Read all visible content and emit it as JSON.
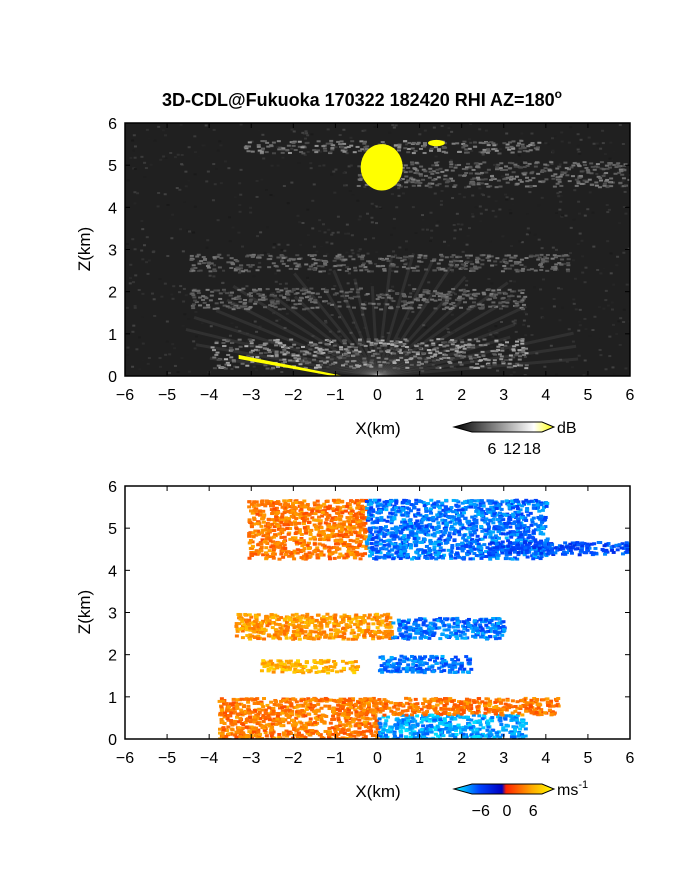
{
  "figure": {
    "title": "3D-CDL@Fukuoka 170322 182420 RHI AZ=180",
    "title_degree": "o"
  },
  "chart_data": [
    {
      "type": "heatmap",
      "name": "reflectivity",
      "xlabel": "X(km)",
      "ylabel": "Z(km)",
      "xlim": [
        -6,
        6
      ],
      "ylim": [
        0,
        6
      ],
      "xticks": [
        -6,
        -5,
        -4,
        -3,
        -2,
        -1,
        0,
        1,
        2,
        3,
        4,
        5,
        6
      ],
      "yticks": [
        0,
        1,
        2,
        3,
        4,
        5,
        6
      ],
      "colorbar": {
        "unit": "dB",
        "ticks": [
          6,
          12,
          18
        ],
        "range": [
          0,
          21
        ],
        "colors": [
          "#000000",
          "#ffffff",
          "#ffff00"
        ]
      },
      "features": [
        {
          "kind": "gray_band",
          "x": [
            -3.2,
            3.8
          ],
          "z": [
            5.3,
            5.6
          ],
          "level": 0.45
        },
        {
          "kind": "gray_band",
          "x": [
            -0.5,
            6.0
          ],
          "z": [
            4.5,
            5.1
          ],
          "level": 0.35
        },
        {
          "kind": "gray_band",
          "x": [
            -4.5,
            4.5
          ],
          "z": [
            2.5,
            2.9
          ],
          "level": 0.3
        },
        {
          "kind": "gray_band",
          "x": [
            -4.5,
            3.5
          ],
          "z": [
            1.6,
            2.1
          ],
          "level": 0.3
        },
        {
          "kind": "gray_band",
          "x": [
            -4.0,
            3.5
          ],
          "z": [
            0.2,
            0.9
          ],
          "level": 0.6
        },
        {
          "kind": "yellow_blob",
          "x": [
            -0.4,
            0.6
          ],
          "z": [
            4.4,
            5.5
          ]
        },
        {
          "kind": "yellow_blob",
          "x": [
            1.2,
            1.6
          ],
          "z": [
            5.45,
            5.6
          ]
        },
        {
          "kind": "yellow_ground_clutter",
          "x": [
            -3.3,
            -0.8
          ],
          "z": [
            0.0,
            0.5
          ]
        }
      ]
    },
    {
      "type": "heatmap",
      "name": "radial velocity",
      "xlabel": "X(km)",
      "ylabel": "Z(km)",
      "xlim": [
        -6,
        6
      ],
      "ylim": [
        0,
        6
      ],
      "xticks": [
        -6,
        -5,
        -4,
        -3,
        -2,
        -1,
        0,
        1,
        2,
        3,
        4,
        5,
        6
      ],
      "yticks": [
        0,
        1,
        2,
        3,
        4,
        5,
        6
      ],
      "colorbar": {
        "unit": "ms",
        "unit_exponent": "-1",
        "ticks": [
          -6,
          0,
          6
        ],
        "range": [
          -8,
          8
        ],
        "colors": [
          "#00ffff",
          "#0044ff",
          "#0000c0",
          "#ff2200",
          "#ffaa00",
          "#ffff00"
        ]
      },
      "features": [
        {
          "kind": "velocity_layer",
          "x": [
            -3.1,
            -0.3
          ],
          "z": [
            4.3,
            5.7
          ],
          "velocity": 3
        },
        {
          "kind": "velocity_layer",
          "x": [
            -0.3,
            4.0
          ],
          "z": [
            4.3,
            5.7
          ],
          "velocity": -5
        },
        {
          "kind": "velocity_layer",
          "x": [
            2.5,
            6.0
          ],
          "z": [
            4.4,
            4.7
          ],
          "velocity": -4
        },
        {
          "kind": "velocity_layer",
          "x": [
            -3.4,
            0.3
          ],
          "z": [
            2.4,
            3.0
          ],
          "velocity": 4
        },
        {
          "kind": "velocity_layer",
          "x": [
            0.3,
            3.0
          ],
          "z": [
            2.4,
            2.9
          ],
          "velocity": -5
        },
        {
          "kind": "velocity_layer",
          "x": [
            -2.8,
            -0.5
          ],
          "z": [
            1.6,
            1.9
          ],
          "velocity": 5
        },
        {
          "kind": "velocity_layer",
          "x": [
            0.0,
            2.2
          ],
          "z": [
            1.6,
            2.0
          ],
          "velocity": -5
        },
        {
          "kind": "velocity_layer",
          "x": [
            -3.8,
            0.0
          ],
          "z": [
            0.0,
            1.0
          ],
          "velocity": 3
        },
        {
          "kind": "velocity_layer",
          "x": [
            0.0,
            3.5
          ],
          "z": [
            0.0,
            0.6
          ],
          "velocity": -6
        },
        {
          "kind": "velocity_layer",
          "x": [
            -1.0,
            4.3
          ],
          "z": [
            0.6,
            1.0
          ],
          "velocity": 3
        }
      ]
    }
  ]
}
